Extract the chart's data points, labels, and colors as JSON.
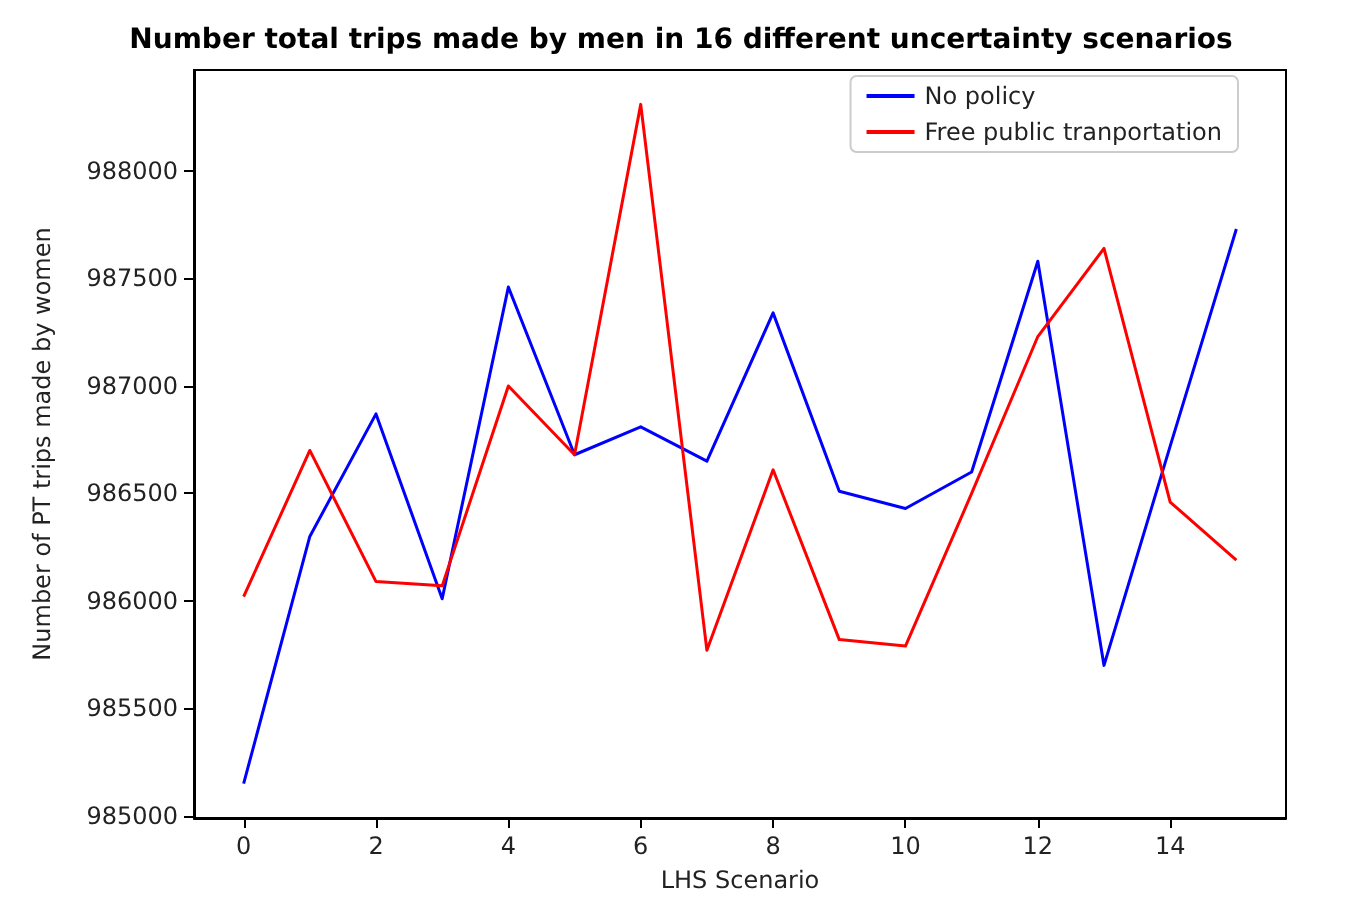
{
  "chart_data": {
    "type": "line",
    "title": "Number total trips made by men in 16 different uncertainty scenarios",
    "xlabel": "LHS Scenario",
    "ylabel": "Number of PT trips made by women",
    "x": [
      0,
      1,
      2,
      3,
      4,
      5,
      6,
      7,
      8,
      9,
      10,
      11,
      12,
      13,
      14,
      15
    ],
    "series": [
      {
        "name": "No policy",
        "color": "#0000ff",
        "values": [
          985150,
          986300,
          986870,
          986010,
          987460,
          986680,
          986810,
          986650,
          987340,
          986510,
          986430,
          986600,
          987580,
          985700,
          986720,
          987730
        ]
      },
      {
        "name": "Free public tranportation",
        "color": "#ff0000",
        "values": [
          986020,
          986700,
          986090,
          986070,
          987000,
          986680,
          988310,
          985770,
          986610,
          985820,
          985790,
          986500,
          987230,
          987640,
          986460,
          986190
        ]
      }
    ],
    "xlim": [
      -0.75,
      15.75
    ],
    "xticks": [
      0,
      2,
      4,
      6,
      8,
      10,
      12,
      14
    ],
    "ylim": [
      984990,
      988470
    ],
    "yticks": [
      985000,
      985500,
      986000,
      986500,
      987000,
      987500,
      988000
    ],
    "grid": false,
    "legend": "top right",
    "marker": "none",
    "line_style": "solid"
  }
}
